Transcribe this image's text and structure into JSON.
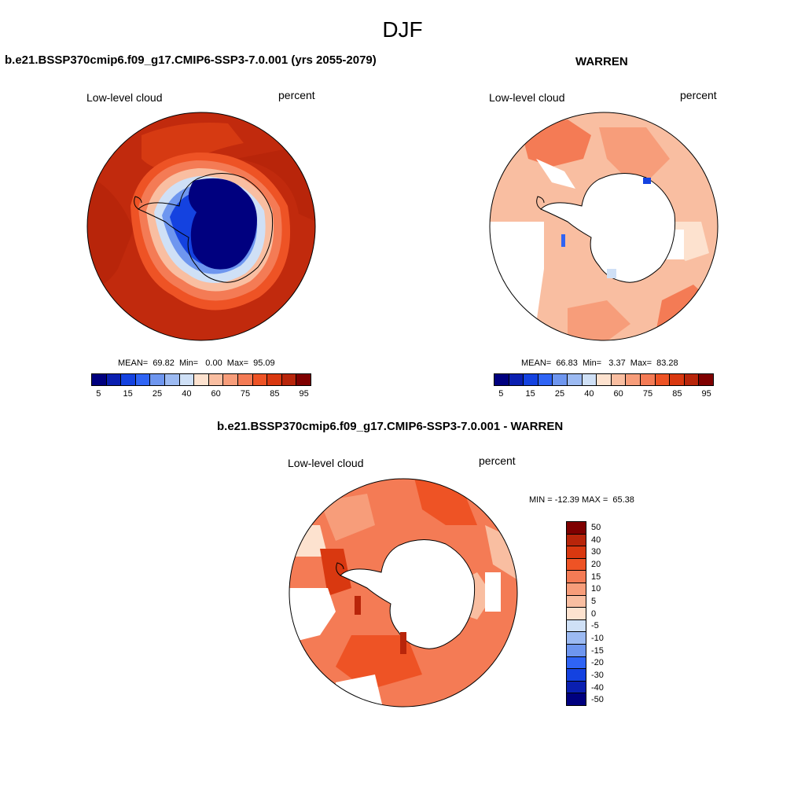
{
  "title": "DJF",
  "panels": {
    "model": {
      "header": "b.e21.BSSP370cmip6.f09_g17.CMIP6-SSP3-7.0.001 (yrs 2055-2079)",
      "left_label": "Low-level cloud",
      "right_label": "percent",
      "stats": "MEAN=  69.82  Min=   0.00  Max=  95.09"
    },
    "obs": {
      "header": "WARREN",
      "left_label": "Low-level cloud",
      "right_label": "percent",
      "stats": "MEAN=  66.83  Min=   3.37  Max=  83.28"
    },
    "diff": {
      "header": "b.e21.BSSP370cmip6.f09_g17.CMIP6-SSP3-7.0.001 - WARREN",
      "left_label": "Low-level cloud",
      "right_label": "percent",
      "stats": "MIN = -12.39 MAX =  65.38"
    }
  },
  "colorbar_abs": {
    "colors": [
      "#00007f",
      "#0a1fb0",
      "#1442e0",
      "#2f64f5",
      "#6e96ef",
      "#9cbaf2",
      "#cfe0f6",
      "#fde2cf",
      "#f9bea1",
      "#f79d7a",
      "#f47b55",
      "#ee5325",
      "#d93810",
      "#b8250a",
      "#7f0000"
    ],
    "labels": [
      "5",
      "15",
      "25",
      "40",
      "60",
      "75",
      "85",
      "95"
    ]
  },
  "colorbar_diff": {
    "colors": [
      "#7f0000",
      "#b8250a",
      "#d93810",
      "#ee5325",
      "#f47b55",
      "#f79d7a",
      "#f9bea1",
      "#fde2cf",
      "#cfe0f6",
      "#9cbaf2",
      "#6e96ef",
      "#2f64f5",
      "#1442e0",
      "#0a1fb0",
      "#00007f"
    ],
    "labels": [
      "50",
      "40",
      "30",
      "20",
      "15",
      "10",
      "5",
      "0",
      "-5",
      "-10",
      "-15",
      "-20",
      "-30",
      "-40",
      "-50"
    ]
  }
}
